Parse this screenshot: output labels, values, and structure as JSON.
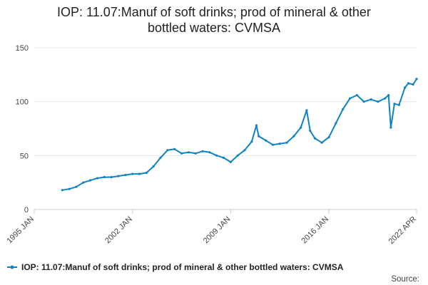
{
  "chart_data": {
    "type": "line",
    "title_line1": "IOP: 11.07:Manuf of soft drinks; prod of mineral & other",
    "title_line2": "bottled waters: CVMSA",
    "xlabel": "",
    "ylabel": "",
    "ylim": [
      0,
      150
    ],
    "xlim": [
      "1995-01",
      "2022-04"
    ],
    "y_ticks": [
      "0",
      "50",
      "100",
      "150"
    ],
    "x_ticks": [
      "1995 JAN",
      "2002 JAN",
      "2009 JAN",
      "2016 JAN",
      "2022 APR"
    ],
    "grid": "horizontal",
    "legend_position": "bottom",
    "series": [
      {
        "name": "IOP: 11.07:Manuf of soft drinks; prod of mineral & other bottled waters: CVMSA",
        "color": "#0f83c2",
        "marker": "circle",
        "points": [
          [
            "1997-01",
            18
          ],
          [
            "1997-07",
            19
          ],
          [
            "1998-01",
            21
          ],
          [
            "1998-07",
            25
          ],
          [
            "1999-01",
            27
          ],
          [
            "1999-07",
            29
          ],
          [
            "2000-01",
            30
          ],
          [
            "2000-07",
            30
          ],
          [
            "2001-01",
            31
          ],
          [
            "2001-07",
            32
          ],
          [
            "2002-01",
            33
          ],
          [
            "2002-07",
            33
          ],
          [
            "2003-01",
            34
          ],
          [
            "2003-07",
            40
          ],
          [
            "2004-01",
            48
          ],
          [
            "2004-07",
            55
          ],
          [
            "2005-01",
            56
          ],
          [
            "2005-07",
            52
          ],
          [
            "2006-01",
            53
          ],
          [
            "2006-07",
            52
          ],
          [
            "2007-01",
            54
          ],
          [
            "2007-07",
            53
          ],
          [
            "2008-01",
            50
          ],
          [
            "2008-07",
            48
          ],
          [
            "2009-01",
            44
          ],
          [
            "2009-07",
            50
          ],
          [
            "2010-01",
            55
          ],
          [
            "2010-07",
            63
          ],
          [
            "2010-11",
            78
          ],
          [
            "2011-01",
            68
          ],
          [
            "2011-07",
            64
          ],
          [
            "2012-01",
            60
          ],
          [
            "2012-07",
            61
          ],
          [
            "2013-01",
            62
          ],
          [
            "2013-07",
            68
          ],
          [
            "2014-01",
            76
          ],
          [
            "2014-06",
            92
          ],
          [
            "2014-09",
            73
          ],
          [
            "2015-01",
            66
          ],
          [
            "2015-07",
            62
          ],
          [
            "2016-01",
            67
          ],
          [
            "2016-07",
            80
          ],
          [
            "2017-01",
            93
          ],
          [
            "2017-07",
            103
          ],
          [
            "2018-01",
            106
          ],
          [
            "2018-07",
            100
          ],
          [
            "2019-01",
            102
          ],
          [
            "2019-07",
            100
          ],
          [
            "2020-01",
            103
          ],
          [
            "2020-04",
            106
          ],
          [
            "2020-06",
            76
          ],
          [
            "2020-09",
            98
          ],
          [
            "2021-01",
            97
          ],
          [
            "2021-06",
            113
          ],
          [
            "2021-09",
            117
          ],
          [
            "2022-01",
            116
          ],
          [
            "2022-04",
            121
          ]
        ]
      }
    ]
  },
  "legend": {
    "label": "IOP: 11.07:Manuf of soft drinks; prod of mineral & other bottled waters: CVMSA"
  },
  "source": {
    "label": "Source:"
  }
}
